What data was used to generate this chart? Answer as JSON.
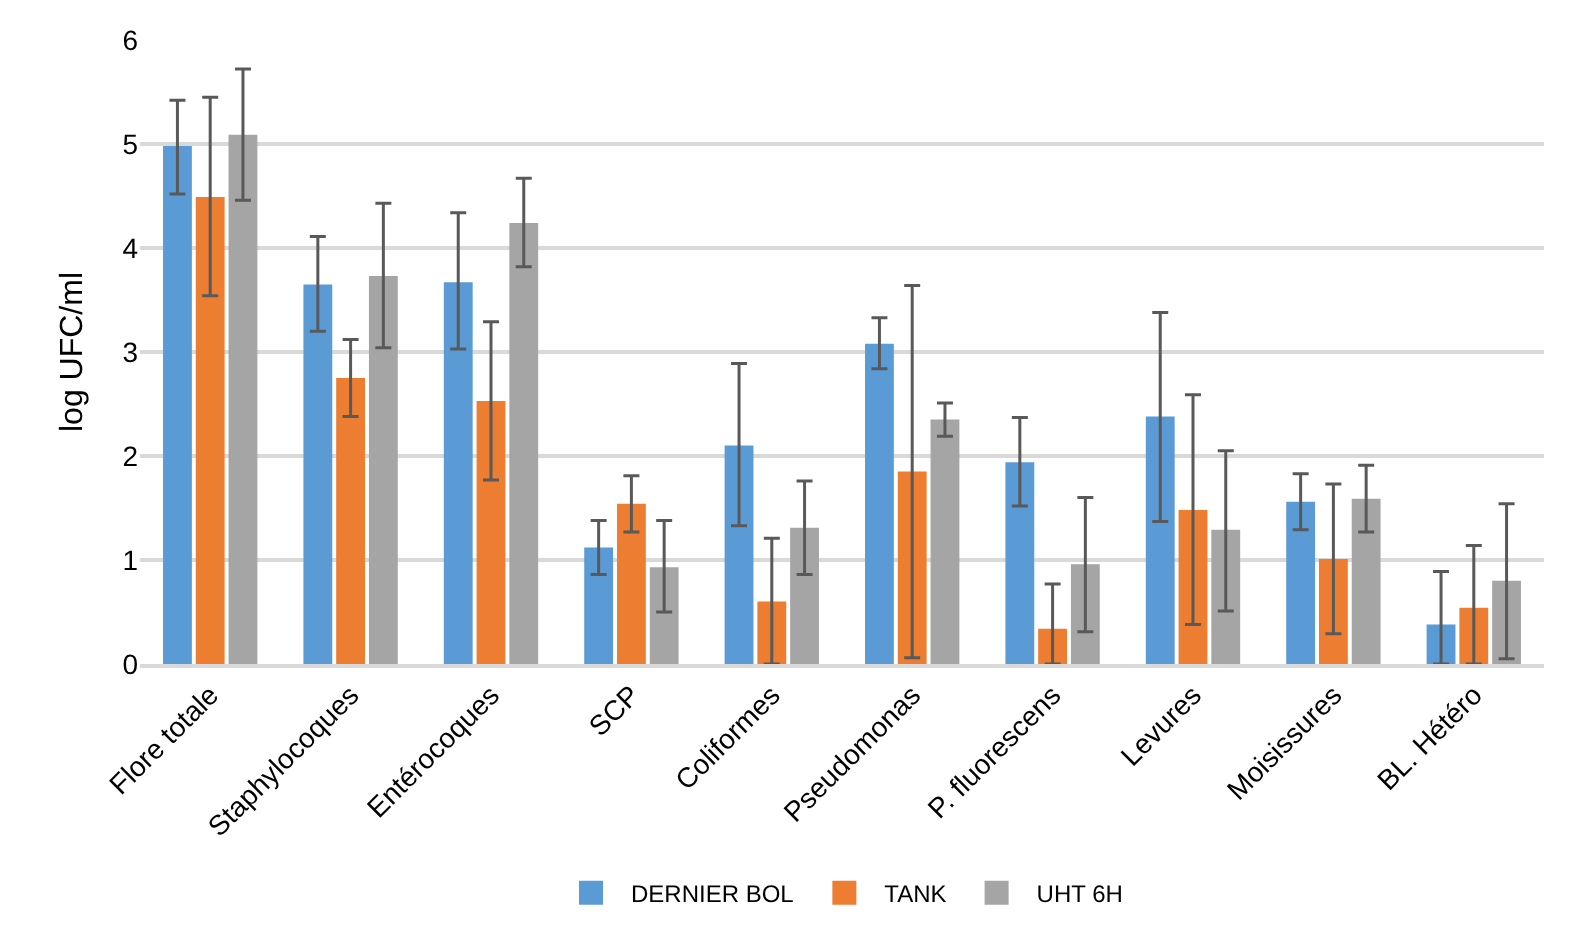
{
  "chart_data": {
    "type": "bar",
    "ylabel": "log UFC/ml",
    "categories": [
      "Flore totale",
      "Staphylocoques",
      "Entérocoques",
      "SCP",
      "Coliformes",
      "Pseudomonas",
      "P. fluorescens",
      "Levures",
      "Moisissures",
      "BL. Hétéro"
    ],
    "series": [
      {
        "name": "DERNIER BOL",
        "color": "#5b9bd5",
        "values": [
          4.98,
          3.65,
          3.67,
          1.12,
          2.1,
          3.08,
          1.94,
          2.38,
          1.56,
          0.38
        ],
        "errors": [
          [
            4.52,
            5.42
          ],
          [
            3.2,
            4.11
          ],
          [
            3.03,
            4.34
          ],
          [
            0.86,
            1.38
          ],
          [
            1.33,
            2.89
          ],
          [
            2.84,
            3.33
          ],
          [
            1.52,
            2.37
          ],
          [
            1.37,
            3.38
          ],
          [
            1.29,
            1.83
          ],
          [
            0,
            0.89
          ]
        ]
      },
      {
        "name": "TANK",
        "color": "#ed7d31",
        "values": [
          4.49,
          2.75,
          2.53,
          1.54,
          0.6,
          1.85,
          0.34,
          1.48,
          1.01,
          0.54
        ],
        "errors": [
          [
            3.54,
            5.45
          ],
          [
            2.38,
            3.12
          ],
          [
            1.77,
            3.29
          ],
          [
            1.27,
            1.81
          ],
          [
            0,
            1.21
          ],
          [
            0.06,
            3.64
          ],
          [
            0,
            0.77
          ],
          [
            0.38,
            2.59
          ],
          [
            0.29,
            1.73
          ],
          [
            0,
            1.14
          ]
        ]
      },
      {
        "name": "UHT 6H",
        "color": "#a5a5a5",
        "values": [
          5.09,
          3.73,
          4.24,
          0.93,
          1.31,
          2.35,
          0.96,
          1.29,
          1.59,
          0.8
        ],
        "errors": [
          [
            4.46,
            5.72
          ],
          [
            3.04,
            4.43
          ],
          [
            3.82,
            4.67
          ],
          [
            0.5,
            1.38
          ],
          [
            0.86,
            1.76
          ],
          [
            2.19,
            2.51
          ],
          [
            0.31,
            1.6
          ],
          [
            0.51,
            2.05
          ],
          [
            1.27,
            1.91
          ],
          [
            0.05,
            1.54
          ]
        ]
      }
    ],
    "ylim": [
      0,
      6
    ],
    "yticks": [
      0,
      1,
      2,
      3,
      4,
      5,
      6
    ],
    "grid": "y",
    "legend": "bottom"
  }
}
